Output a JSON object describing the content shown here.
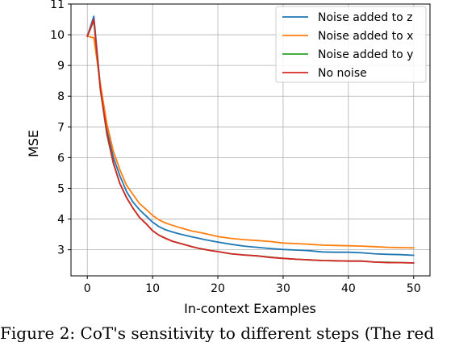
{
  "chart_data": {
    "type": "line",
    "xlabel": "In-context Examples",
    "ylabel": "MSE",
    "xlim": [
      -2.5,
      52.5
    ],
    "ylim": [
      2.15,
      11
    ],
    "xticks": [
      0,
      10,
      20,
      30,
      40,
      50
    ],
    "yticks": [
      3,
      4,
      5,
      6,
      7,
      8,
      9,
      10,
      11
    ],
    "grid": true,
    "legend_position": "top-right",
    "series": [
      {
        "name": "Noise added to z",
        "color": "#1f77b4",
        "x": [
          0,
          1,
          2,
          3,
          4,
          5,
          6,
          7,
          8,
          9,
          10,
          11,
          12,
          13,
          14,
          15,
          16,
          17,
          18,
          19,
          20,
          22,
          24,
          26,
          28,
          30,
          32,
          34,
          36,
          38,
          40,
          42,
          44,
          46,
          48,
          50
        ],
        "y": [
          9.95,
          10.6,
          8.3,
          6.9,
          6.0,
          5.4,
          4.9,
          4.55,
          4.3,
          4.1,
          3.9,
          3.75,
          3.65,
          3.58,
          3.52,
          3.47,
          3.42,
          3.38,
          3.33,
          3.29,
          3.25,
          3.18,
          3.12,
          3.08,
          3.04,
          3.01,
          2.99,
          2.97,
          2.93,
          2.92,
          2.92,
          2.9,
          2.87,
          2.85,
          2.84,
          2.82
        ]
      },
      {
        "name": "Noise added to x",
        "color": "#ff7f0e",
        "x": [
          0,
          1,
          2,
          3,
          4,
          5,
          6,
          7,
          8,
          9,
          10,
          11,
          12,
          13,
          14,
          15,
          16,
          17,
          18,
          19,
          20,
          22,
          24,
          26,
          28,
          30,
          32,
          34,
          36,
          38,
          40,
          42,
          44,
          46,
          48,
          50
        ],
        "y": [
          9.95,
          9.9,
          8.4,
          7.1,
          6.2,
          5.6,
          5.1,
          4.8,
          4.5,
          4.32,
          4.12,
          3.97,
          3.87,
          3.8,
          3.73,
          3.67,
          3.61,
          3.57,
          3.53,
          3.48,
          3.43,
          3.37,
          3.33,
          3.3,
          3.27,
          3.22,
          3.2,
          3.18,
          3.15,
          3.14,
          3.13,
          3.12,
          3.1,
          3.08,
          3.07,
          3.06
        ]
      },
      {
        "name": "Noise added to y",
        "color": "#2ca02c",
        "x": [
          0,
          1,
          2,
          3,
          4,
          5,
          6,
          7,
          8,
          9,
          10,
          11,
          12,
          13,
          14,
          15,
          16,
          17,
          18,
          19,
          20,
          22,
          24,
          26,
          28,
          30,
          32,
          34,
          36,
          38,
          40,
          42,
          44,
          46,
          48,
          50
        ],
        "y": [
          9.95,
          10.45,
          8.2,
          6.75,
          5.8,
          5.15,
          4.7,
          4.35,
          4.05,
          3.85,
          3.62,
          3.47,
          3.37,
          3.28,
          3.22,
          3.16,
          3.1,
          3.05,
          3.01,
          2.97,
          2.94,
          2.87,
          2.83,
          2.8,
          2.76,
          2.72,
          2.69,
          2.67,
          2.65,
          2.64,
          2.63,
          2.63,
          2.6,
          2.59,
          2.58,
          2.57
        ]
      },
      {
        "name": "No noise",
        "color": "#d62728",
        "x": [
          0,
          1,
          2,
          3,
          4,
          5,
          6,
          7,
          8,
          9,
          10,
          11,
          12,
          13,
          14,
          15,
          16,
          17,
          18,
          19,
          20,
          22,
          24,
          26,
          28,
          30,
          32,
          34,
          36,
          38,
          40,
          42,
          44,
          46,
          48,
          50
        ],
        "y": [
          9.95,
          10.5,
          8.25,
          6.8,
          5.82,
          5.15,
          4.7,
          4.35,
          4.05,
          3.85,
          3.62,
          3.47,
          3.37,
          3.28,
          3.22,
          3.16,
          3.1,
          3.05,
          3.01,
          2.97,
          2.94,
          2.87,
          2.83,
          2.8,
          2.75,
          2.72,
          2.69,
          2.67,
          2.65,
          2.64,
          2.63,
          2.63,
          2.6,
          2.58,
          2.58,
          2.57
        ]
      }
    ]
  },
  "caption": {
    "text": "Figure 2: CoT's sensitivity to different steps (The red"
  }
}
